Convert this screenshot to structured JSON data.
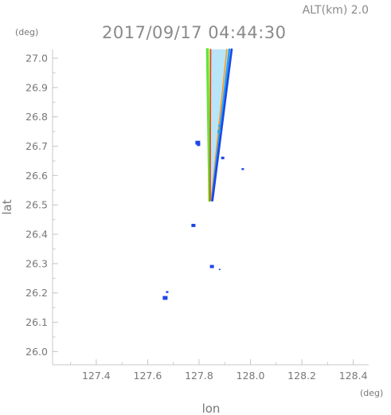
{
  "header": {
    "altitude_label": "ALT(km)  2.0",
    "timestamp": "2017/09/17 04:44:30"
  },
  "chart_data": {
    "type": "scatter",
    "title": "2017/09/17 04:44:30",
    "xlabel": "lon",
    "ylabel": "lat",
    "x_unit": "(deg)",
    "y_unit": "(deg)",
    "xlim": [
      127.23,
      128.46
    ],
    "ylim": [
      25.955,
      27.03
    ],
    "x_ticks": [
      127.4,
      127.6,
      127.8,
      128.0,
      128.2,
      128.4
    ],
    "x_tick_labels": [
      "127.4",
      "127.6",
      "127.8",
      "128.0",
      "128.2",
      "128.4"
    ],
    "y_ticks": [
      26.0,
      26.1,
      26.2,
      26.3,
      26.4,
      26.5,
      26.6,
      26.7,
      26.8,
      26.9,
      27.0
    ],
    "y_tick_labels": [
      "26.0",
      "26.1",
      "26.2",
      "26.3",
      "26.4",
      "26.5",
      "26.6",
      "26.7",
      "26.8",
      "26.9",
      "27.0"
    ],
    "grid": false,
    "colors": {
      "blue": "#1e46e6",
      "teal": "#22a0f0",
      "green": "#5ee63c",
      "yellow": "#e6ff28",
      "orange": "#ff9a1e",
      "red": "#f03c1e",
      "axis": "#c8c8c8",
      "text": "#777777"
    },
    "plume": {
      "vertex": [
        127.842,
        26.515
      ],
      "left_top": [
        127.84,
        27.03
      ],
      "right_top": [
        127.925,
        27.03
      ],
      "stripes": [
        {
          "color": "#e6ff28",
          "top_lon": 127.835,
          "vertex_lon": 127.84
        },
        {
          "color": "#5ee63c",
          "top_lon": 127.832,
          "vertex_lon": 127.841
        },
        {
          "color": "#f03c1e",
          "top_lon": 127.845,
          "vertex_lon": 127.843
        },
        {
          "color": "#ff9a1e",
          "top_lon": 127.908,
          "vertex_lon": 127.847
        },
        {
          "color": "#22a0f0",
          "top_lon": 127.918,
          "vertex_lon": 127.85
        },
        {
          "color": "#1e46e6",
          "top_lon": 127.927,
          "vertex_lon": 127.852
        }
      ]
    },
    "points": [
      {
        "lon": 127.795,
        "lat": 26.712,
        "color": "#1e46e6",
        "size": 3
      },
      {
        "lon": 127.798,
        "lat": 26.705,
        "color": "#1e46e6",
        "size": 2
      },
      {
        "lon": 127.892,
        "lat": 26.66,
        "color": "#1e46e6",
        "size": 2
      },
      {
        "lon": 127.97,
        "lat": 26.622,
        "color": "#1e46e6",
        "size": 1.5
      },
      {
        "lon": 127.778,
        "lat": 26.43,
        "color": "#1e46e6",
        "size": 2.5
      },
      {
        "lon": 127.85,
        "lat": 26.29,
        "color": "#1e46e6",
        "size": 2.5
      },
      {
        "lon": 127.88,
        "lat": 26.28,
        "color": "#1e46e6",
        "size": 1
      },
      {
        "lon": 127.668,
        "lat": 26.183,
        "color": "#1e46e6",
        "size": 3
      },
      {
        "lon": 127.676,
        "lat": 26.203,
        "color": "#1e46e6",
        "size": 1.5
      },
      {
        "lon": 127.878,
        "lat": 26.75,
        "color": "#22a0f0",
        "size": 2
      },
      {
        "lon": 127.88,
        "lat": 26.77,
        "color": "#22a0f0",
        "size": 1.5
      }
    ]
  }
}
